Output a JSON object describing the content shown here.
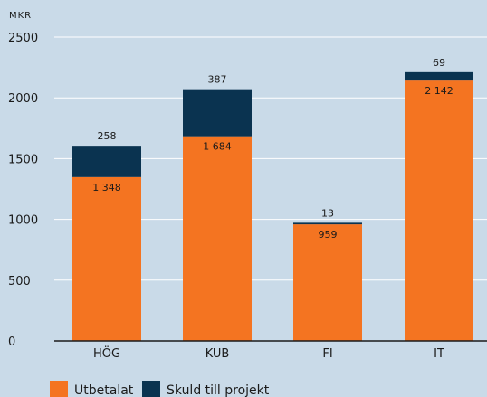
{
  "chart_data": {
    "type": "bar",
    "stacked": true,
    "unit_label": "MKR",
    "categories": [
      "HÖG",
      "KUB",
      "FI",
      "IT"
    ],
    "series": [
      {
        "name": "Utbetalat",
        "values": [
          1348,
          1684,
          959,
          2142
        ],
        "labels": [
          "1 348",
          "1 684",
          "959",
          "2 142"
        ],
        "color": "#f47421"
      },
      {
        "name": "Skuld till projekt",
        "values": [
          258,
          387,
          13,
          69
        ],
        "labels": [
          "258",
          "387",
          "13",
          "69"
        ],
        "color": "#0a3350"
      }
    ],
    "yticks": [
      0,
      500,
      1000,
      1500,
      2000,
      2500
    ],
    "ytick_labels": [
      "0",
      "500",
      "1000",
      "1500",
      "2000",
      "2500"
    ],
    "ylim": [
      0,
      2500
    ],
    "grid": true,
    "legend": "bottom-left",
    "colors": {
      "background": "#c9dae8",
      "grid": "#ffffff",
      "axis": "#1a1a1a"
    }
  }
}
